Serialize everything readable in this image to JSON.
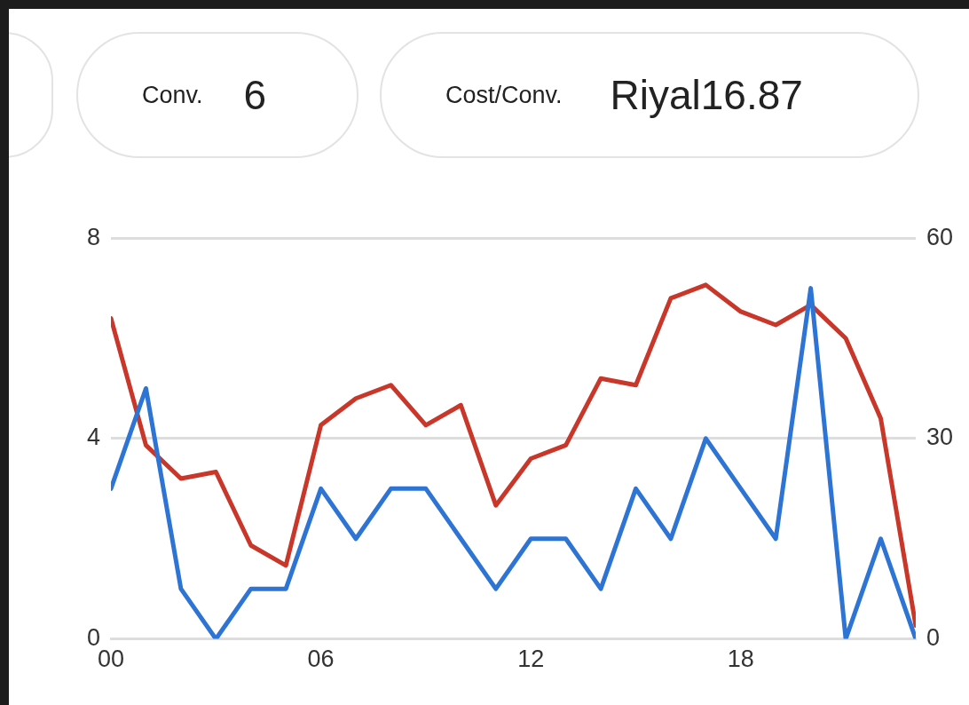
{
  "chart_data": {
    "type": "line",
    "annotations": [
      "Conv.",
      "6",
      "Cost/Conv.",
      "Riyal16.87"
    ],
    "x": [
      0,
      1,
      2,
      3,
      4,
      5,
      6,
      7,
      8,
      9,
      10,
      11,
      12,
      13,
      14,
      15,
      16,
      17,
      18,
      19,
      20,
      21,
      22,
      23
    ],
    "series": [
      {
        "color": "#2d74d4",
        "axis": "y",
        "values": [
          3,
          5,
          1,
          0,
          1,
          1,
          3,
          2,
          3,
          3,
          2,
          1,
          2,
          2,
          1,
          3,
          2,
          4,
          3,
          2,
          7,
          0,
          2,
          0
        ]
      },
      {
        "color": "#c8372a",
        "axis": "y2",
        "values": [
          48,
          29,
          24,
          25,
          14,
          11,
          32,
          36,
          38,
          32,
          35,
          20,
          27,
          29,
          39,
          38,
          51,
          53,
          49,
          47,
          50,
          45,
          33,
          2
        ]
      }
    ],
    "xlim": [
      0,
      23
    ],
    "xticks": [
      {
        "value": 0,
        "label": "00"
      },
      {
        "value": 6,
        "label": "06"
      },
      {
        "value": 12,
        "label": "12"
      },
      {
        "value": 18,
        "label": "18"
      }
    ],
    "ylim": [
      0,
      8
    ],
    "yticks": [
      0,
      4,
      8
    ],
    "y2lim": [
      0,
      60
    ],
    "y2ticks": [
      0,
      30,
      60
    ],
    "grid": "y",
    "legend": false,
    "marker": "none",
    "line_style": "solid"
  }
}
